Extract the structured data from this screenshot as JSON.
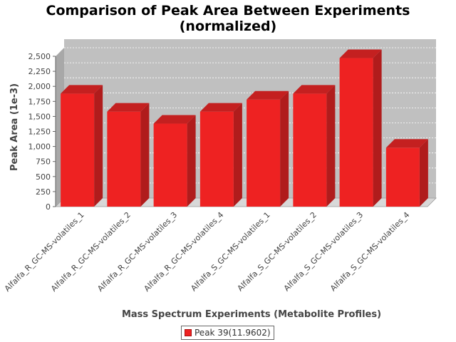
{
  "chart_data": {
    "type": "bar",
    "title": [
      "Comparison of Peak Area Between Experiments",
      "(normalized)"
    ],
    "xlabel": "Mass Spectrum Experiments (Metabolite Profiles)",
    "ylabel": "Peak Area (1e-3)",
    "categories": [
      "Alfalfa_R_GC-MS-volatiles_1",
      "Alfalfa_R_GC-MS-volatiles_2",
      "Alfalfa_R_GC-MS-volatiles_3",
      "Alfalfa_R_GC-MS-volatiles_4",
      "Alfalfa_S_GC-MS-volatiles_1",
      "Alfalfa_S_GC-MS-volatiles_2",
      "Alfalfa_S_GC-MS-volatiles_3",
      "Alfalfa_S_GC-MS-volatiles_4"
    ],
    "series": [
      {
        "name": "Peak 39(11.9602)",
        "values": [
          1880,
          1580,
          1380,
          1580,
          1780,
          1880,
          2470,
          980
        ]
      }
    ],
    "ylim": [
      0,
      2500
    ],
    "yticks": [
      0,
      250,
      500,
      750,
      1000,
      1250,
      1500,
      1750,
      2000,
      2250,
      2500
    ],
    "ytick_labels": [
      "0",
      "250",
      "500",
      "750",
      "1,000",
      "1,250",
      "1,500",
      "1,750",
      "2,000",
      "2,250",
      "2,500"
    ],
    "grid": true,
    "legend_position": "bottom-center",
    "colors": {
      "bar": "#ee2222",
      "plot_bg": "#c0c0c0"
    }
  }
}
